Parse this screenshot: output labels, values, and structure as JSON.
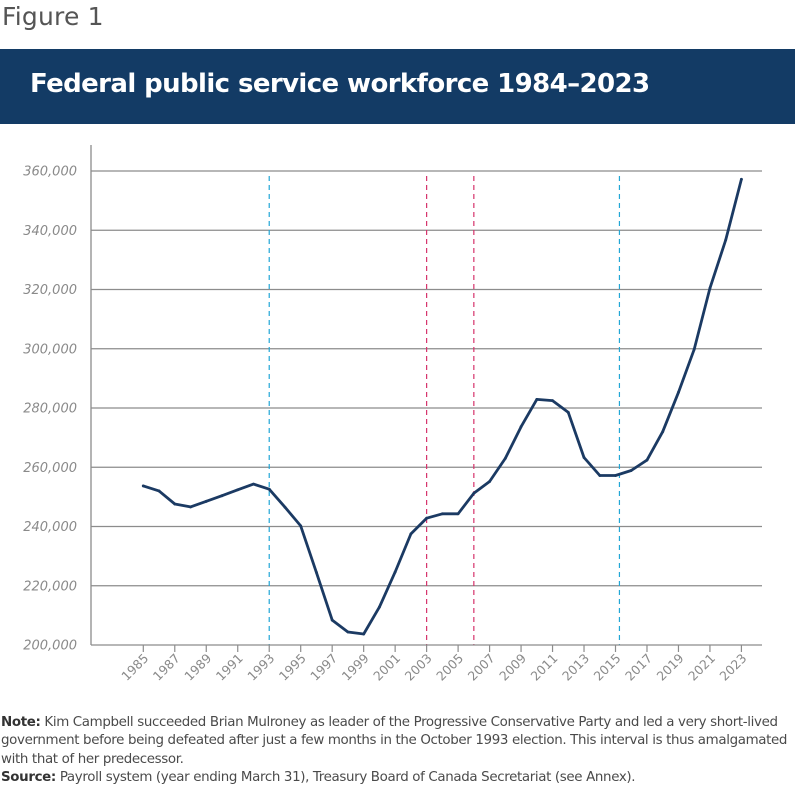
{
  "figure_label": "Figure 1",
  "title": "Federal public service workforce 1984–2023",
  "colors": {
    "banner": "#133b65",
    "line": "#1b3a63",
    "grid": "#8c8c8c",
    "cyan_marker": "#22a7d6",
    "magenta_marker": "#d6336c"
  },
  "chart_data": {
    "type": "line",
    "title": "Federal public service workforce 1984–2023",
    "xlabel": "",
    "ylabel": "",
    "ylim": [
      200000,
      360000
    ],
    "xlim": [
      1984,
      2024.3
    ],
    "yticks": [
      200000,
      220000,
      240000,
      260000,
      280000,
      300000,
      320000,
      340000,
      360000
    ],
    "ytick_labels": [
      "200,000",
      "220,000",
      "240,000",
      "260,000",
      "280,000",
      "300,000",
      "320,000",
      "340,000",
      "360,000"
    ],
    "xticks": [
      "1985",
      "1987",
      "1989",
      "1991",
      "1993",
      "1995",
      "1997",
      "1999",
      "2001",
      "2003",
      "2005",
      "2007",
      "2009",
      "2011",
      "2013",
      "2015",
      "2017",
      "2019",
      "2021",
      "2023"
    ],
    "grid": "horizontal",
    "legend": "none",
    "series": [
      {
        "name": "Federal public service workforce",
        "x": [
          1985,
          1986,
          1987,
          1988,
          1989,
          1990,
          1991,
          1992,
          1993,
          1994,
          1995,
          1996,
          1997,
          1998,
          1999,
          2000,
          2001,
          2002,
          2003,
          2004,
          2005,
          2006,
          2007,
          2008,
          2009,
          2010,
          2011,
          2012,
          2013,
          2014,
          2015,
          2016,
          2017,
          2018,
          2019,
          2020,
          2021,
          2022,
          2023
        ],
        "values": [
          253700,
          252000,
          247600,
          246600,
          248500,
          250400,
          252400,
          254300,
          252600,
          246500,
          240200,
          224500,
          208400,
          204400,
          203700,
          212800,
          224600,
          237500,
          242800,
          244300,
          244300,
          251200,
          255200,
          263000,
          273700,
          282900,
          282500,
          278500,
          263300,
          257200,
          257200,
          258900,
          262400,
          272000,
          285300,
          299800,
          320400,
          336700,
          357200
        ]
      }
    ],
    "reference_lines": [
      {
        "x": 1993,
        "style": "dashed",
        "color": "cyan"
      },
      {
        "x": 2003,
        "style": "dashed",
        "color": "magenta"
      },
      {
        "x": 2006,
        "style": "dashed",
        "color": "magenta"
      },
      {
        "x": 2015.25,
        "style": "dashed",
        "color": "cyan"
      }
    ]
  },
  "notes": {
    "note_label": "Note:",
    "note_text": " Kim Campbell succeeded Brian Mulroney as leader of the Progressive Conservative Party and led a very short-lived government before being defeated after just a few months in the October 1993 election. This interval is thus amalgamated with that of her predecessor.",
    "source_label": "Source:",
    "source_text": " Payroll system (year ending March 31), Treasury Board of Canada Secretariat (see Annex)."
  }
}
